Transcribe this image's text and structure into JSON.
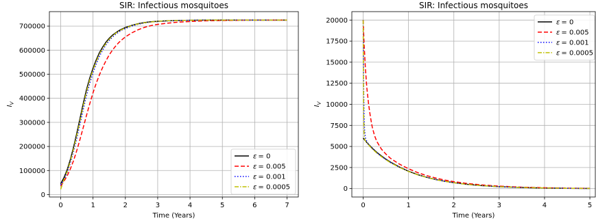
{
  "chart_data": [
    {
      "type": "line",
      "title": "SIR: Infectious mosquitoes",
      "xlabel": "Time (Years)",
      "ylabel": "I",
      "ylabel_sub": "V",
      "xlim": [
        -0.35,
        7.35
      ],
      "ylim": [
        -10000,
        760000
      ],
      "xticks": [
        0,
        1,
        2,
        3,
        4,
        5,
        6,
        7
      ],
      "yticks": [
        0,
        100000,
        200000,
        300000,
        400000,
        500000,
        600000,
        700000
      ],
      "ytick_labels": [
        "0",
        "100000",
        "200000",
        "300000",
        "400000",
        "500000",
        "600000",
        "700000"
      ],
      "grid": true,
      "legend_position": "lower-right",
      "series": [
        {
          "name": "ε = 0",
          "legend_prefix": "ε",
          "legend_value": "= 0",
          "color": "#000000",
          "dash": "",
          "x": [
            0,
            0.1,
            0.2,
            0.3,
            0.4,
            0.5,
            0.6,
            0.7,
            0.8,
            0.9,
            1.0,
            1.1,
            1.2,
            1.3,
            1.4,
            1.5,
            1.6,
            1.7,
            1.8,
            1.9,
            2.0,
            2.2,
            2.4,
            2.6,
            2.8,
            3.0,
            3.3,
            3.6,
            4.0,
            4.5,
            5.0,
            5.5,
            6.0,
            6.5,
            7.0
          ],
          "y": [
            45000,
            70000,
            103000,
            146000,
            198000,
            256000,
            318000,
            380000,
            437000,
            485000,
            525000,
            560000,
            590000,
            613000,
            633000,
            649000,
            662000,
            672000,
            681000,
            688000,
            694000,
            703000,
            710000,
            715000,
            718000,
            720000,
            722000,
            723000,
            724000,
            725000,
            725000,
            725000,
            725000,
            725000,
            725000
          ]
        },
        {
          "name": "ε = 0.005",
          "legend_prefix": "ε",
          "legend_value": "= 0.005",
          "color": "#ff0000",
          "dash": "6,3",
          "x": [
            0,
            0.1,
            0.2,
            0.3,
            0.4,
            0.5,
            0.6,
            0.7,
            0.8,
            0.9,
            1.0,
            1.1,
            1.2,
            1.3,
            1.4,
            1.5,
            1.6,
            1.7,
            1.8,
            1.9,
            2.0,
            2.2,
            2.4,
            2.6,
            2.8,
            3.0,
            3.3,
            3.6,
            4.0,
            4.5,
            5.0,
            5.5,
            6.0,
            6.5,
            7.0
          ],
          "y": [
            35000,
            55000,
            78000,
            107000,
            142000,
            184000,
            231000,
            280000,
            330000,
            378000,
            423000,
            463000,
            498000,
            529000,
            556000,
            580000,
            600000,
            617000,
            632000,
            644000,
            655000,
            672000,
            685000,
            695000,
            702000,
            707000,
            712000,
            716000,
            719000,
            722000,
            723000,
            724000,
            725000,
            725000,
            725000
          ]
        },
        {
          "name": "ε = 0.001",
          "legend_prefix": "ε",
          "legend_value": "= 0.001",
          "color": "#0000ff",
          "dash": "1.5,2.5",
          "x": [
            0,
            0.1,
            0.2,
            0.3,
            0.4,
            0.5,
            0.6,
            0.7,
            0.8,
            0.9,
            1.0,
            1.1,
            1.2,
            1.3,
            1.4,
            1.5,
            1.6,
            1.7,
            1.8,
            1.9,
            2.0,
            2.2,
            2.4,
            2.6,
            2.8,
            3.0,
            3.3,
            3.6,
            4.0,
            4.5,
            5.0,
            5.5,
            6.0,
            6.5,
            7.0
          ],
          "y": [
            40000,
            62000,
            92000,
            132000,
            180000,
            235000,
            295000,
            355000,
            413000,
            463000,
            506000,
            543000,
            575000,
            601000,
            622000,
            640000,
            654000,
            666000,
            676000,
            684000,
            690000,
            700000,
            708000,
            713000,
            717000,
            719000,
            721000,
            723000,
            724000,
            725000,
            725000,
            725000,
            725000,
            725000,
            725000
          ]
        },
        {
          "name": "ε = 0.0005",
          "legend_prefix": "ε",
          "legend_value": "= 0.0005",
          "color": "#bfbf00",
          "dash": "6,2,1.5,2",
          "x": [
            0,
            0.1,
            0.2,
            0.3,
            0.4,
            0.5,
            0.6,
            0.7,
            0.8,
            0.9,
            1.0,
            1.1,
            1.2,
            1.3,
            1.4,
            1.5,
            1.6,
            1.7,
            1.8,
            1.9,
            2.0,
            2.2,
            2.4,
            2.6,
            2.8,
            3.0,
            3.3,
            3.6,
            4.0,
            4.5,
            5.0,
            5.5,
            6.0,
            6.5,
            7.0
          ],
          "y": [
            22000,
            62000,
            96000,
            139000,
            190000,
            247000,
            308000,
            370000,
            428000,
            477000,
            518000,
            553000,
            584000,
            608000,
            628000,
            645000,
            659000,
            670000,
            679000,
            686000,
            692000,
            702000,
            709000,
            714000,
            717000,
            720000,
            722000,
            723000,
            724000,
            725000,
            725000,
            725000,
            725000,
            725000,
            725000
          ]
        }
      ]
    },
    {
      "type": "line",
      "title": "SIR: Infectious mosquitoes",
      "xlabel": "Time (Years)",
      "ylabel": "I",
      "ylabel_sub": "V",
      "xlim": [
        -0.25,
        5.12
      ],
      "ylim": [
        -1000,
        21000
      ],
      "xticks": [
        0,
        1,
        2,
        3,
        4,
        5
      ],
      "yticks": [
        0,
        2500,
        5000,
        7500,
        10000,
        12500,
        15000,
        17500,
        20000
      ],
      "ytick_labels": [
        "0",
        "2500",
        "5000",
        "7500",
        "10000",
        "12500",
        "15000",
        "17500",
        "20000"
      ],
      "grid": true,
      "legend_position": "top-right",
      "series": [
        {
          "name": "ε = 0",
          "legend_prefix": "ε",
          "legend_value": "= 0",
          "color": "#000000",
          "dash": "",
          "x": [
            0,
            0.05,
            0.1,
            0.2,
            0.3,
            0.4,
            0.5,
            0.6,
            0.8,
            1.0,
            1.2,
            1.4,
            1.6,
            1.8,
            2.0,
            2.3,
            2.6,
            3.0,
            3.5,
            4.0,
            4.5,
            5.0
          ],
          "y": [
            6000,
            5650,
            5350,
            4800,
            4300,
            3880,
            3500,
            3150,
            2560,
            2060,
            1660,
            1340,
            1080,
            870,
            700,
            500,
            360,
            230,
            130,
            70,
            40,
            20
          ]
        },
        {
          "name": "ε = 0.005",
          "legend_prefix": "ε",
          "legend_value": "= 0.005",
          "color": "#ff0000",
          "dash": "6,3",
          "x": [
            0,
            0.02,
            0.05,
            0.08,
            0.12,
            0.16,
            0.2,
            0.25,
            0.3,
            0.4,
            0.5,
            0.6,
            0.8,
            1.0,
            1.2,
            1.4,
            1.6,
            1.8,
            2.0,
            2.3,
            2.6,
            3.0,
            3.5,
            4.0,
            4.5,
            5.0
          ],
          "y": [
            20000,
            17200,
            14200,
            12000,
            10000,
            8500,
            7300,
            6300,
            5600,
            4700,
            4100,
            3600,
            2900,
            2350,
            1900,
            1540,
            1250,
            1010,
            820,
            600,
            440,
            290,
            170,
            100,
            55,
            30
          ]
        },
        {
          "name": "ε = 0.001",
          "legend_prefix": "ε",
          "legend_value": "= 0.001",
          "color": "#0000ff",
          "dash": "1.5,2.5",
          "x": [
            0,
            0.01,
            0.02,
            0.03,
            0.05,
            0.08,
            0.1,
            0.15,
            0.2,
            0.3,
            0.4,
            0.5,
            0.6,
            0.8,
            1.0,
            1.2,
            1.4,
            1.6,
            1.8,
            2.0,
            2.3,
            2.6,
            3.0,
            3.5,
            4.0,
            4.5,
            5.0
          ],
          "y": [
            20000,
            12500,
            8600,
            7000,
            6000,
            5600,
            5400,
            5050,
            4750,
            4250,
            3830,
            3450,
            3100,
            2530,
            2040,
            1650,
            1330,
            1070,
            860,
            690,
            500,
            360,
            230,
            130,
            70,
            40,
            20
          ]
        },
        {
          "name": "ε = 0.0005",
          "legend_prefix": "ε",
          "legend_value": "= 0.0005",
          "color": "#bfbf00",
          "dash": "6,2,1.5,2",
          "x": [
            0,
            0.005,
            0.01,
            0.02,
            0.03,
            0.05,
            0.08,
            0.1,
            0.15,
            0.2,
            0.3,
            0.4,
            0.5,
            0.6,
            0.8,
            1.0,
            1.2,
            1.4,
            1.6,
            1.8,
            2.0,
            2.3,
            2.6,
            3.0,
            3.5,
            4.0,
            4.5,
            5.0
          ],
          "y": [
            20000,
            13000,
            9000,
            6700,
            5900,
            5650,
            5450,
            5320,
            5000,
            4720,
            4220,
            3800,
            3430,
            3080,
            2520,
            2030,
            1640,
            1320,
            1060,
            860,
            690,
            500,
            360,
            230,
            130,
            70,
            40,
            20
          ]
        }
      ]
    }
  ]
}
